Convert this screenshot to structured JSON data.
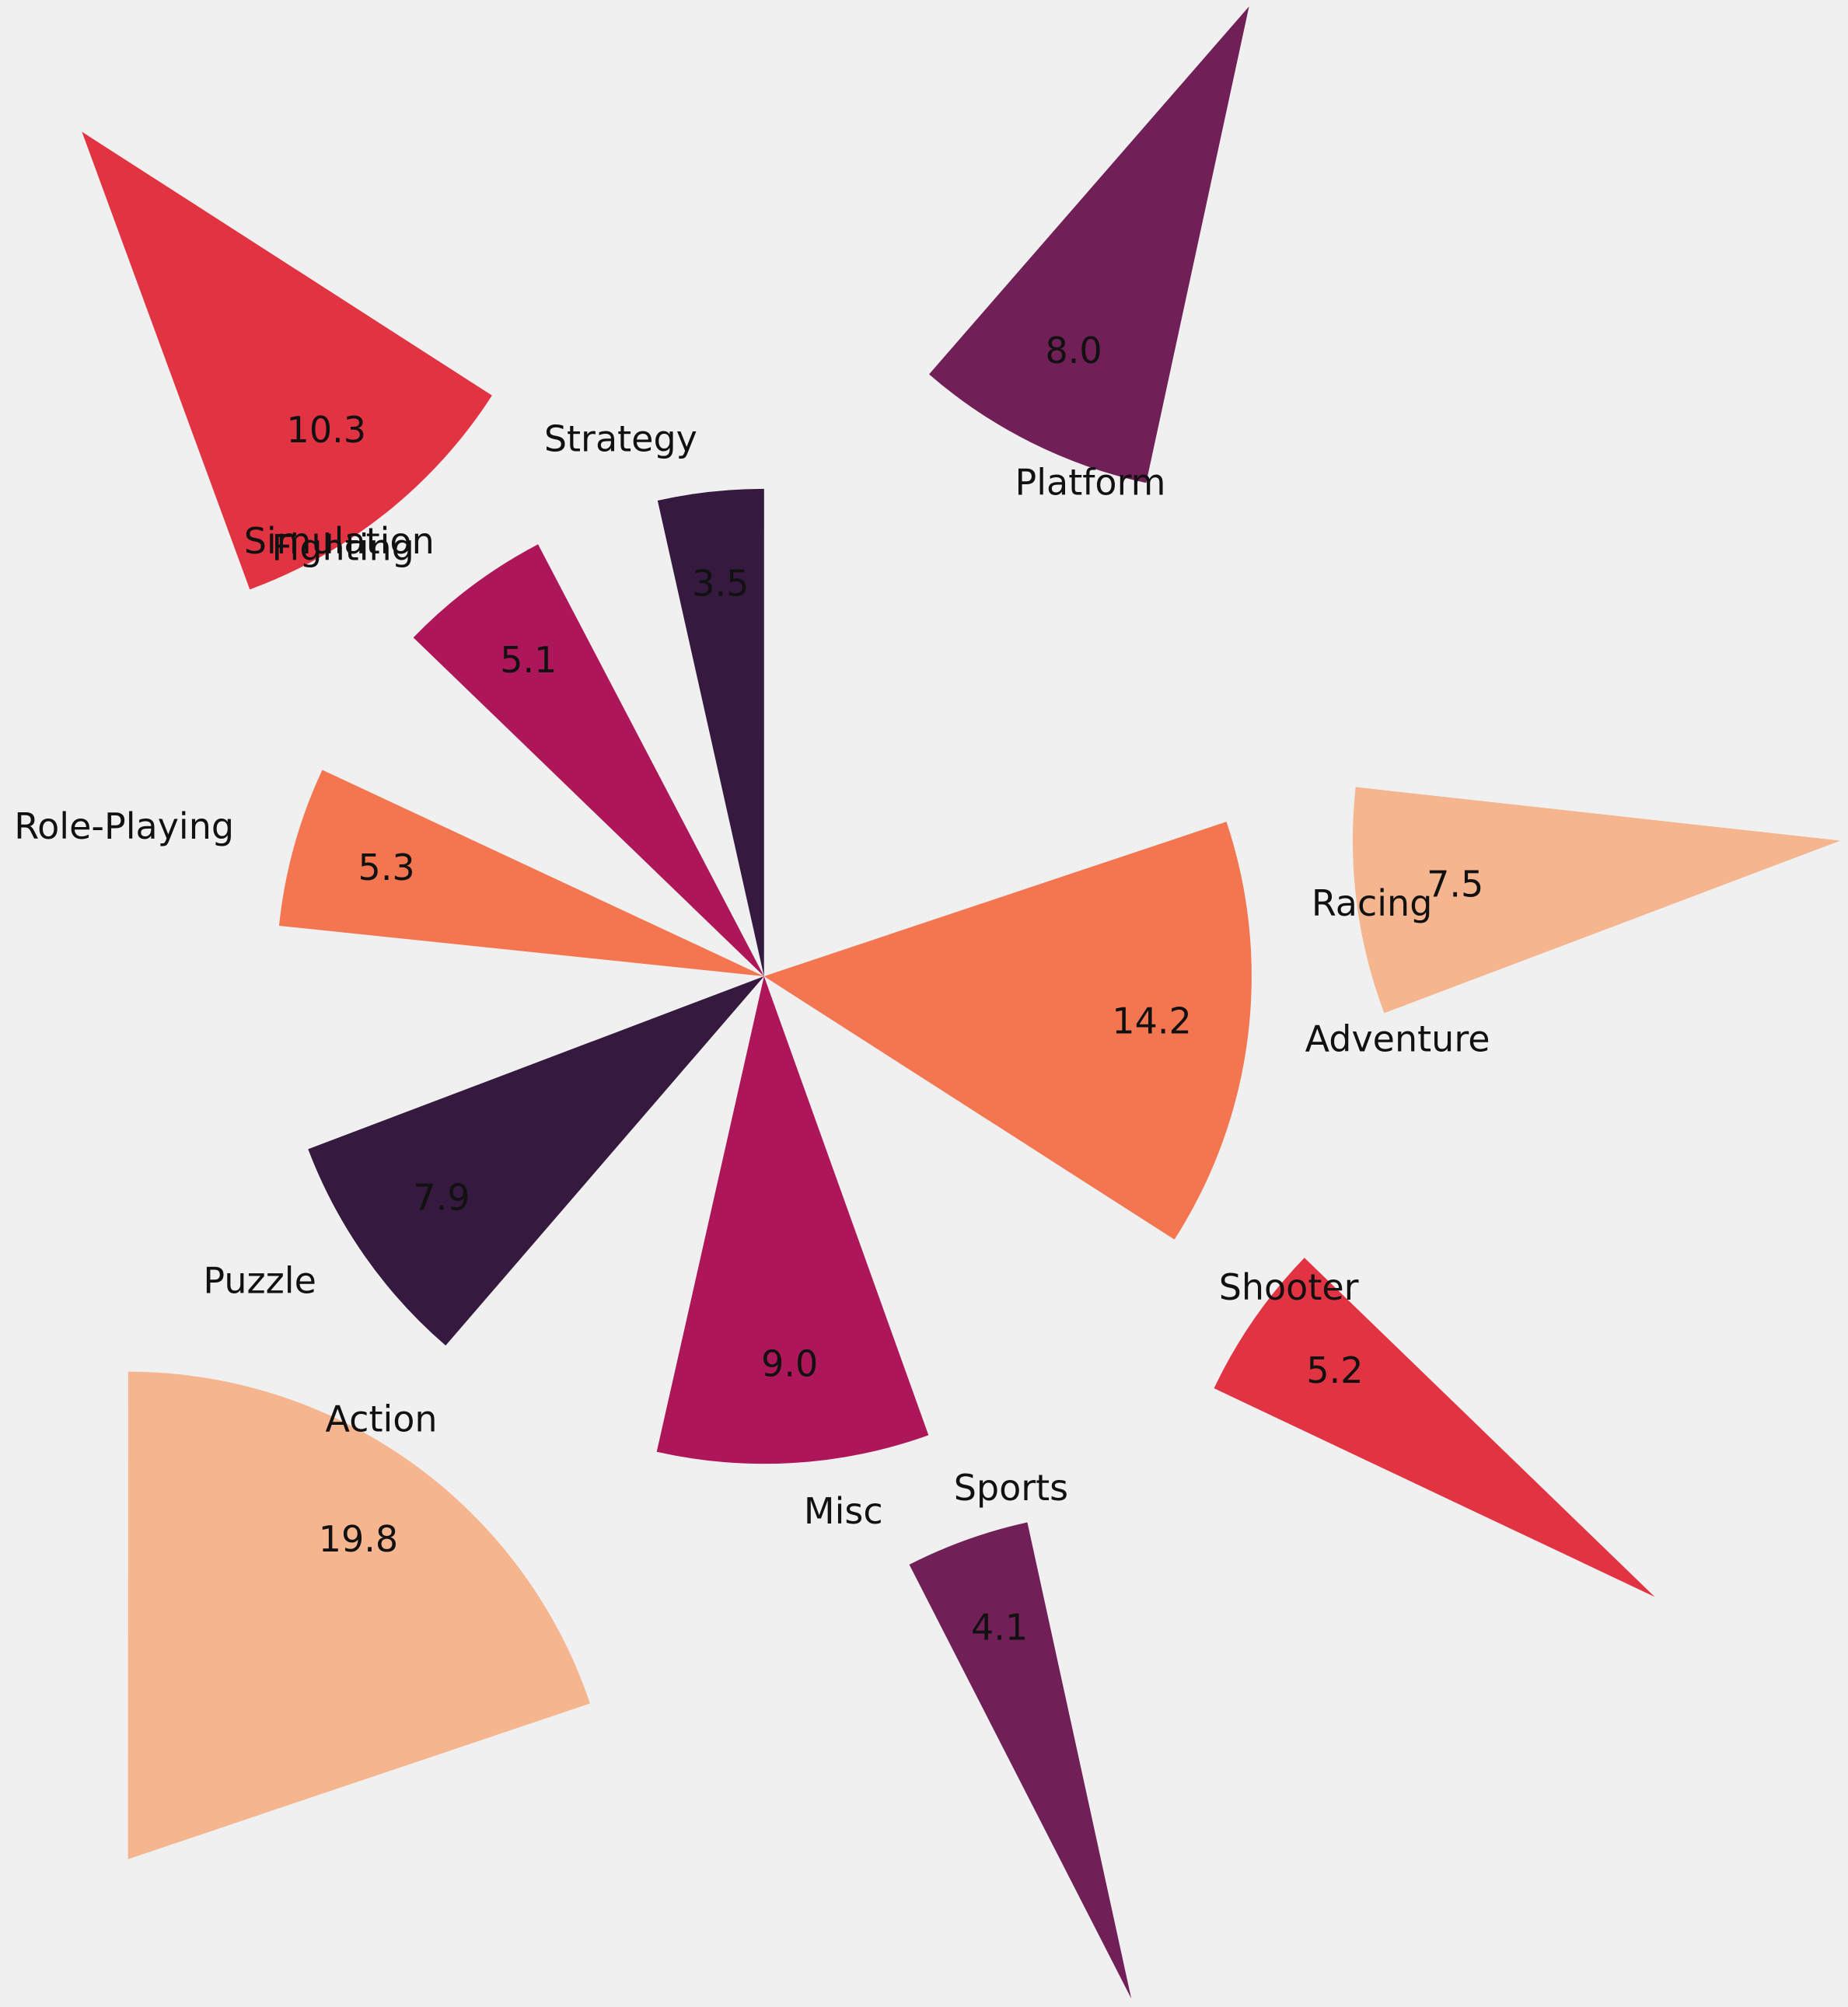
{
  "chart_data": {
    "type": "pie",
    "categories": [
      "Action",
      "Adventure",
      "Fighting",
      "Misc",
      "Platform",
      "Puzzle",
      "Racing",
      "Role-Playing",
      "Shooter",
      "Simulation",
      "Sports",
      "Strategy"
    ],
    "values": [
      19.8,
      14.2,
      10.3,
      9.0,
      8.0,
      7.9,
      7.5,
      5.3,
      5.2,
      5.1,
      4.1,
      3.5
    ],
    "value_labels": [
      "19.8",
      "14.2",
      "10.3",
      "9.0",
      "8.0",
      "7.9",
      "7.5",
      "5.3",
      "5.2",
      "5.1",
      "4.1",
      "3.5"
    ],
    "colors": [
      "#f5b58f",
      "#f37651",
      "#e13342",
      "#ad1759",
      "#701f57",
      "#35193e",
      "#f5b58f",
      "#f37651",
      "#e13342",
      "#ad1759",
      "#701f57",
      "#35193e"
    ]
  }
}
